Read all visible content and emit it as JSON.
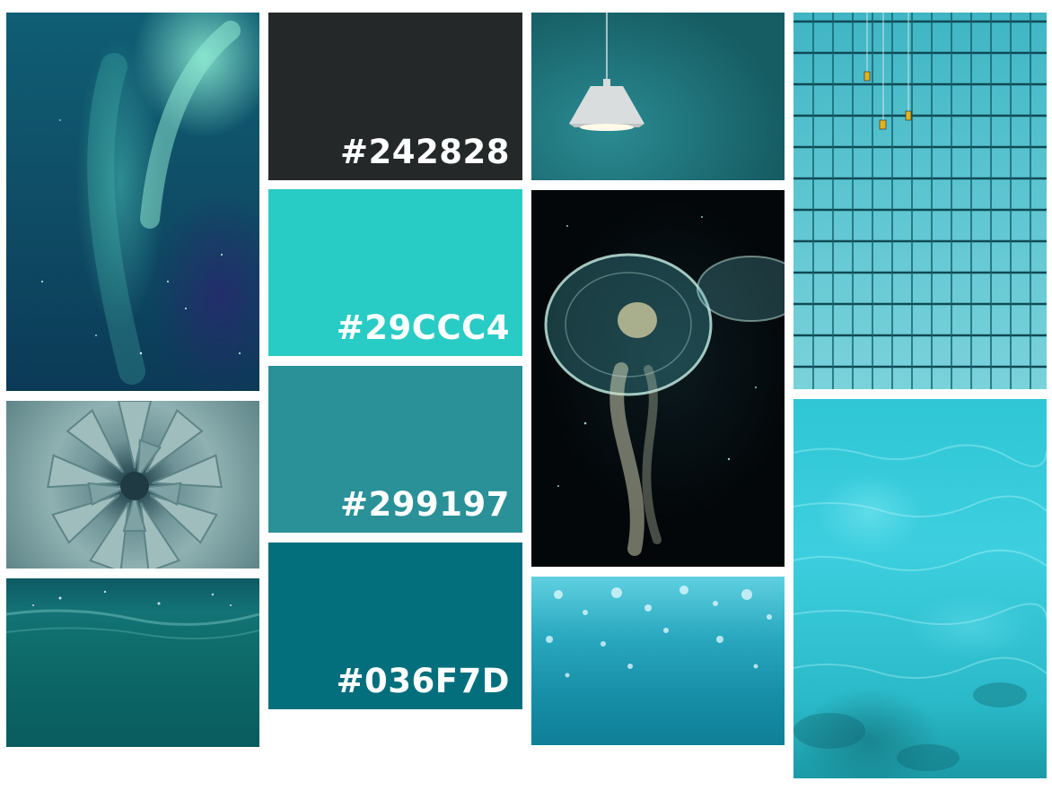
{
  "palette": [
    {
      "hex_label": "#242828",
      "color": "#242828"
    },
    {
      "hex_label": "#29CCC4",
      "color": "#29CCC4"
    },
    {
      "hex_label": "#299197",
      "color": "#299197"
    },
    {
      "hex_label": "#036F7D",
      "color": "#036F7D"
    }
  ],
  "photos": {
    "aurora": "aurora-photo",
    "agave": "agave-plant-photo",
    "water_surface": "underwater-surface-photo",
    "lamp": "pendant-lamp-photo",
    "jellyfish": "jellyfish-photo",
    "bubbles": "underwater-bubbles-photo",
    "building": "glass-building-window-cleaners-photo",
    "sea": "turquoise-sea-photo"
  }
}
